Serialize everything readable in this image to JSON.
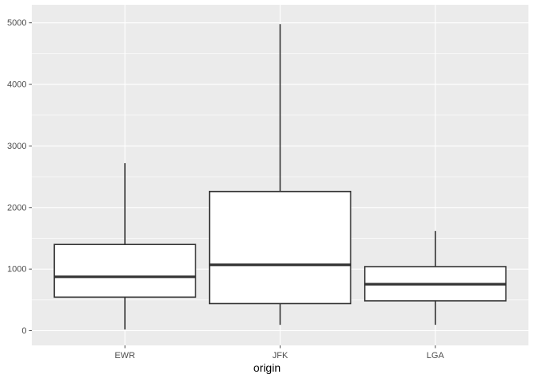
{
  "figure": {
    "kind": "ggplot-style box-and-whisker plot",
    "plot_title": ""
  },
  "axes": {
    "x": {
      "title": "origin",
      "tick_labels": [
        "EWR",
        "JFK",
        "LGA"
      ]
    },
    "y": {
      "title": "",
      "tick_labels": [
        "0",
        "1000",
        "2000",
        "3000",
        "4000",
        "5000"
      ]
    }
  },
  "chart_data": {
    "type": "boxplot",
    "title": "",
    "xlabel": "origin",
    "ylabel": "",
    "categories": [
      "EWR",
      "JFK",
      "LGA"
    ],
    "series": [
      {
        "name": "EWR",
        "whisker_low": 20,
        "q1": 545,
        "median": 875,
        "q3": 1400,
        "whisker_high": 2720,
        "outliers": []
      },
      {
        "name": "JFK",
        "whisker_low": 95,
        "q1": 440,
        "median": 1070,
        "q3": 2260,
        "whisker_high": 4980,
        "outliers": []
      },
      {
        "name": "LGA",
        "whisker_low": 95,
        "q1": 485,
        "median": 755,
        "q3": 1040,
        "whisker_high": 1620,
        "outliers": []
      }
    ],
    "y_major_ticks": [
      0,
      1000,
      2000,
      3000,
      4000,
      5000
    ],
    "y_minor_gridlines": [
      500,
      1500,
      2500,
      3500,
      4500
    ],
    "ylim": [
      -239,
      5293
    ],
    "grid": {
      "horizontal_major": true,
      "horizontal_minor": true,
      "vertical_major_at_categories": true,
      "vertical_minor": false
    },
    "legend_position": "none"
  },
  "style": {
    "panel_bg": "#EBEBEB",
    "grid_major_color": "#FFFFFF",
    "grid_minor_color": "#FFFFFF",
    "box_stroke": "#333333",
    "box_fill": "#FFFFFF",
    "axis_text_color": "#4D4D4D",
    "axis_title_color": "#000000",
    "tick_color": "#4A4A4A",
    "outer_bg": "#FFFFFF"
  }
}
